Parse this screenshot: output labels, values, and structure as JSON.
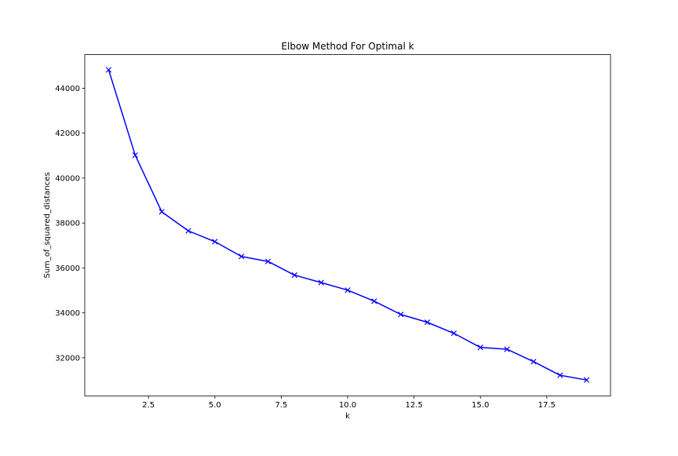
{
  "chart_data": {
    "type": "line",
    "title": "Elbow Method For Optimal k",
    "xlabel": "k",
    "ylabel": "Sum_of_squared_distances",
    "xlim": [
      0.1,
      19.9
    ],
    "ylim": [
      30300,
      45500
    ],
    "xticks": [
      2.5,
      5.0,
      7.5,
      10.0,
      12.5,
      15.0,
      17.5
    ],
    "xtick_labels": [
      "2.5",
      "5.0",
      "7.5",
      "10.0",
      "12.5",
      "15.0",
      "17.5"
    ],
    "yticks": [
      32000,
      34000,
      36000,
      38000,
      40000,
      42000,
      44000
    ],
    "ytick_labels": [
      "32000",
      "34000",
      "36000",
      "38000",
      "40000",
      "42000",
      "44000"
    ],
    "grid": false,
    "marker": "x",
    "color": "#0000ff",
    "x": [
      1,
      2,
      3,
      4,
      5,
      6,
      7,
      8,
      9,
      10,
      11,
      12,
      13,
      14,
      15,
      16,
      17,
      18,
      19
    ],
    "y": [
      44820,
      41020,
      38500,
      37650,
      37170,
      36510,
      36290,
      35680,
      35350,
      35010,
      34520,
      33930,
      33580,
      33090,
      32460,
      32380,
      31830,
      31220,
      31010
    ]
  }
}
